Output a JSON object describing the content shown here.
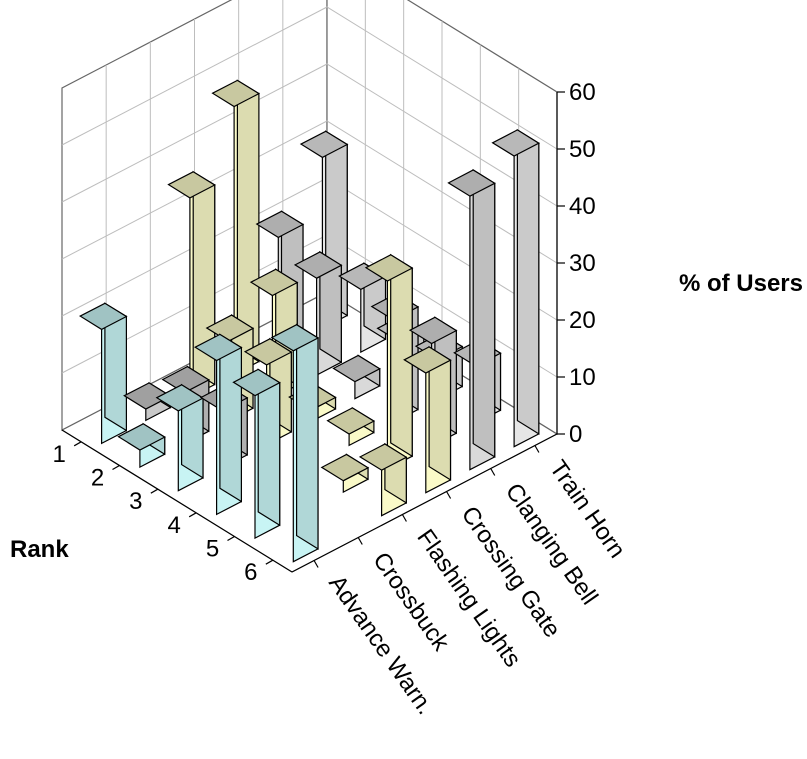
{
  "chart_data": {
    "type": "bar3d",
    "title": "",
    "zlabel": "% of Users",
    "ylabel": "Rank",
    "zlim": [
      0,
      60
    ],
    "z_ticks": [
      "0",
      "10",
      "20",
      "30",
      "40",
      "50",
      "60"
    ],
    "ranks": [
      "1",
      "2",
      "3",
      "4",
      "5",
      "6"
    ],
    "categories": [
      "Advance Warn.",
      "Crossbuck",
      "Flashing Lights",
      "Crossing Gate",
      "Clanging Bell",
      "Train Horn"
    ],
    "series_colors": {
      "Advance Warn.": "#c8f4f4",
      "Crossbuck": "#c8c8c8",
      "Flashing Lights": "#fafac8",
      "Crossing Gate": "#fafac8",
      "Clanging Bell": "#d9d9d9",
      "Train Horn": "#e6e6e6"
    },
    "values": [
      [
        20,
        2,
        35,
        47,
        20,
        30
      ],
      [
        3,
        9,
        14,
        18,
        17,
        11
      ],
      [
        14,
        10,
        14,
        2,
        3,
        6
      ],
      [
        27,
        0,
        0,
        2,
        18,
        7
      ],
      [
        25,
        0,
        2,
        33,
        18,
        10
      ],
      [
        37,
        0,
        8,
        21,
        48,
        51
      ]
    ]
  }
}
